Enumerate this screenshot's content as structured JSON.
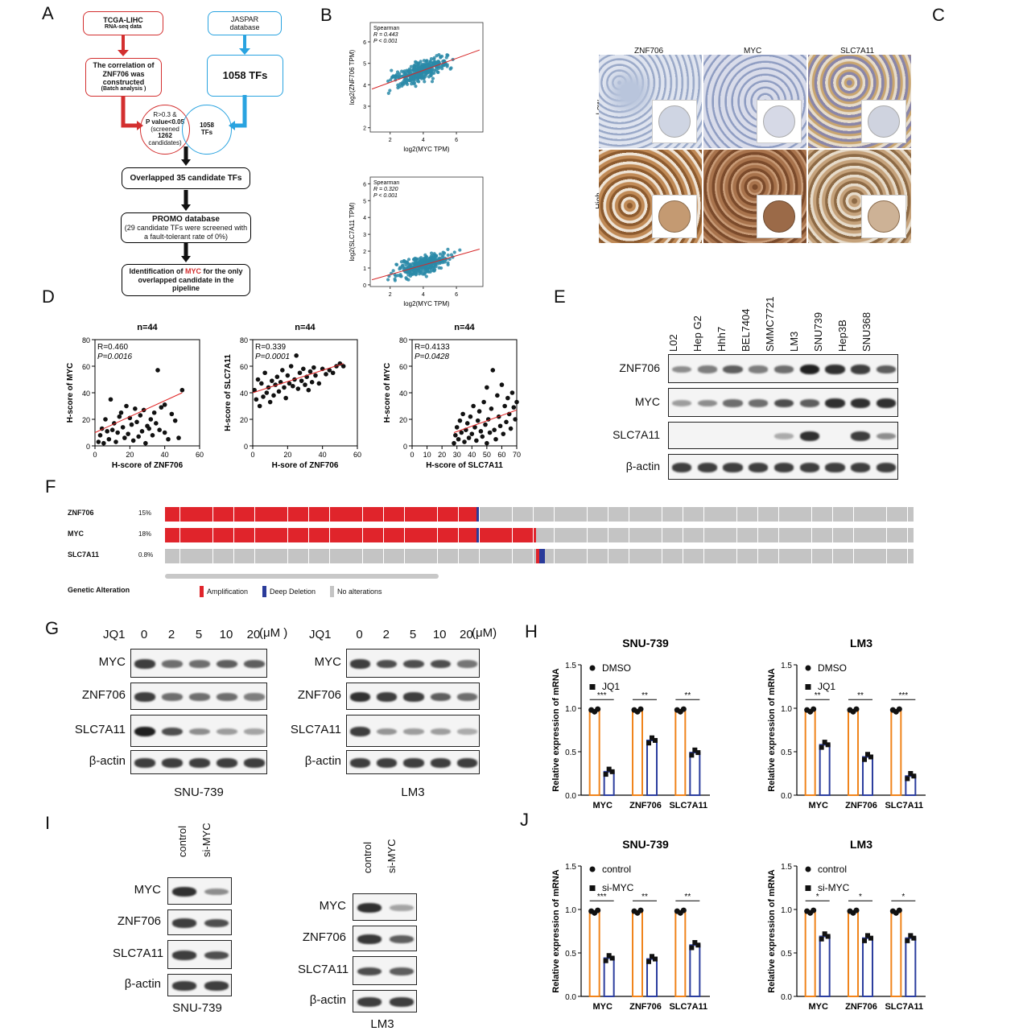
{
  "panels": {
    "a": "A",
    "b": "B",
    "c": "C",
    "d": "D",
    "e": "E",
    "f": "F",
    "g": "G",
    "h": "H",
    "i": "I",
    "j": "J"
  },
  "flow": {
    "tcga_l1": "TCGA-LIHC",
    "tcga_l2": "RNA-seq data",
    "jaspar_l1": "JASPAR",
    "jaspar_l2": "database",
    "corr_l1": "The correlation of",
    "corr_l2": "ZNF706 was",
    "corr_l3": "constructed",
    "corr_l4": "(Batch analysis )",
    "tfs": "1058 TFs",
    "circle_left_l1": "R>0.3 &",
    "circle_left_l2": "P value<0.05",
    "circle_left_l3": "(screened",
    "circle_left_l4": "1262",
    "circle_left_l5": "candidates)",
    "circle_right_l1": "1058",
    "circle_right_l2": "TFs",
    "overlap": "Overlapped 35 candidate TFs",
    "promo_l1": "PROMO database",
    "promo_l2": "(29 candidate TFs were screened with",
    "promo_l3": "a fault-tolerant rate of 0%)",
    "ident_pre": "Identification of ",
    "ident_myc": "MYC",
    "ident_post": " for the only",
    "ident_l2": "overlapped candidate in the",
    "ident_l3": "pipeline"
  },
  "b1": {
    "stat1": "Spearman",
    "stat2": "R = 0.443",
    "stat3": "P < 0.001",
    "ylabel": "log2(ZNF706 TPM)",
    "xlabel": "log2(MYC TPM)",
    "yticks": [
      "2",
      "3",
      "4",
      "5",
      "6"
    ],
    "xticks": [
      "2",
      "4",
      "6"
    ]
  },
  "b2": {
    "stat1": "Spearman",
    "stat2": "R = 0.320",
    "stat3": "P < 0.001",
    "ylabel": "log2(SLC7A11 TPM)",
    "xlabel": "log2(MYC TPM)",
    "yticks": [
      "0",
      "1",
      "2",
      "3",
      "4",
      "5",
      "6"
    ],
    "xticks": [
      "2",
      "4",
      "6"
    ]
  },
  "c": {
    "cols": [
      "ZNF706",
      "MYC",
      "SLC7A11"
    ],
    "rows": [
      "Low",
      "High"
    ]
  },
  "d": [
    {
      "n": "n=44",
      "r": "R=0.460",
      "p": "P=0.0016",
      "ylabel": "H-score of MYC",
      "xlabel": "H-score of ZNF706",
      "yticks": [
        "0",
        "20",
        "40",
        "60",
        "80"
      ],
      "xticks": [
        "0",
        "20",
        "40",
        "60"
      ]
    },
    {
      "n": "n=44",
      "r": "R=0.339",
      "p": "P=0.0001",
      "ylabel": "H-score of SLC7A11",
      "xlabel": "H-sore of ZNF706",
      "yticks": [
        "0",
        "20",
        "40",
        "60",
        "80"
      ],
      "xticks": [
        "0",
        "20",
        "40",
        "60"
      ]
    },
    {
      "n": "n=44",
      "r": "R=0.4133",
      "p": "P=0.0428",
      "ylabel": "H-score of MYC",
      "xlabel": "H-score of SLC7A11",
      "yticks": [
        "0",
        "20",
        "40",
        "60",
        "80"
      ],
      "xticks": [
        "0",
        "10",
        "20",
        "30",
        "40",
        "50",
        "60",
        "70"
      ]
    }
  ],
  "e": {
    "lanes": [
      "L02",
      "Hep G2",
      "Hhh7",
      "BEL7404",
      "SMMC7721",
      "LM3",
      "SNU739",
      "Hep3B",
      "SNU368"
    ],
    "rows": [
      "ZNF706",
      "MYC",
      "SLC7A11",
      "β-actin"
    ]
  },
  "f": {
    "genes": [
      {
        "name": "ZNF706",
        "pct": "15%"
      },
      {
        "name": "MYC",
        "pct": "18%"
      },
      {
        "name": "SLC7A11",
        "pct": "0.8%"
      }
    ],
    "legend_title": "Genetic Alteration",
    "legend": [
      "Amplification",
      "Deep Deletion",
      "No alterations"
    ],
    "colors": {
      "amp": "#e0242b",
      "del": "#2a3b9a",
      "none": "#c4c4c4"
    }
  },
  "g": {
    "left": {
      "jq1": "JQ1",
      "doses": [
        "0",
        "2",
        "5",
        "10",
        "20"
      ],
      "unit": "(μM )",
      "rows": [
        "MYC",
        "ZNF706",
        "SLC7A11",
        "β-actin"
      ],
      "cell": "SNU-739"
    },
    "right": {
      "jq1": "JQ1",
      "doses": [
        "0",
        "2",
        "5",
        "10",
        "20"
      ],
      "unit": "(μM)",
      "rows": [
        "MYC",
        "ZNF706",
        "SLC7A11",
        "β-actin"
      ],
      "cell": "LM3"
    }
  },
  "i": {
    "left": {
      "lanes": [
        "control",
        "si-MYC"
      ],
      "rows": [
        "MYC",
        "ZNF706",
        "SLC7A11",
        "β-actin"
      ],
      "cell": "SNU-739"
    },
    "right": {
      "lanes": [
        "control",
        "si-MYC"
      ],
      "rows": [
        "MYC",
        "ZNF706",
        "SLC7A11",
        "β-actin"
      ],
      "cell": "LM3"
    }
  },
  "chart_data": [
    {
      "type": "bar",
      "title": "SNU-739",
      "ylabel": "Relative expression of mRNA",
      "categories": [
        "MYC",
        "ZNF706",
        "SLC7A11"
      ],
      "ylim": [
        0,
        1.5
      ],
      "yticks": [
        "0.0",
        "0.5",
        "1.0",
        "1.5"
      ],
      "series": [
        {
          "name": "DMSO",
          "values": [
            0.97,
            0.97,
            0.97
          ]
        },
        {
          "name": "JQ1",
          "values": [
            0.27,
            0.63,
            0.49
          ]
        }
      ],
      "sig": [
        "***",
        "**",
        "**"
      ]
    },
    {
      "type": "bar",
      "title": "LM3",
      "ylabel": "Relative expression of mRNA",
      "categories": [
        "MYC",
        "ZNF706",
        "SLC7A11"
      ],
      "ylim": [
        0,
        1.5
      ],
      "yticks": [
        "0.0",
        "0.5",
        "1.0",
        "1.5"
      ],
      "series": [
        {
          "name": "DMSO",
          "values": [
            0.97,
            0.97,
            0.97
          ]
        },
        {
          "name": "JQ1",
          "values": [
            0.58,
            0.44,
            0.22
          ]
        }
      ],
      "sig": [
        "**",
        "**",
        "***"
      ]
    },
    {
      "type": "bar",
      "title": "SNU-739",
      "ylabel": "Relative expression of mRNA",
      "categories": [
        "MYC",
        "ZNF706",
        "SLC7A11"
      ],
      "ylim": [
        0,
        1.5
      ],
      "yticks": [
        "0.0",
        "0.5",
        "1.0",
        "1.5"
      ],
      "series": [
        {
          "name": "control",
          "values": [
            0.97,
            0.97,
            0.97
          ]
        },
        {
          "name": "si-MYC",
          "values": [
            0.44,
            0.43,
            0.59
          ]
        }
      ],
      "sig": [
        "***",
        "**",
        "**"
      ]
    },
    {
      "type": "bar",
      "title": "LM3",
      "ylabel": "Relative expression of mRNA",
      "categories": [
        "MYC",
        "ZNF706",
        "SLC7A11"
      ],
      "ylim": [
        0,
        1.5
      ],
      "yticks": [
        "0.0",
        "0.5",
        "1.0",
        "1.5"
      ],
      "series": [
        {
          "name": "control",
          "values": [
            0.97,
            0.97,
            0.97
          ]
        },
        {
          "name": "si-MYC",
          "values": [
            0.69,
            0.67,
            0.67
          ]
        }
      ],
      "sig": [
        "*",
        "*",
        "*"
      ]
    }
  ]
}
